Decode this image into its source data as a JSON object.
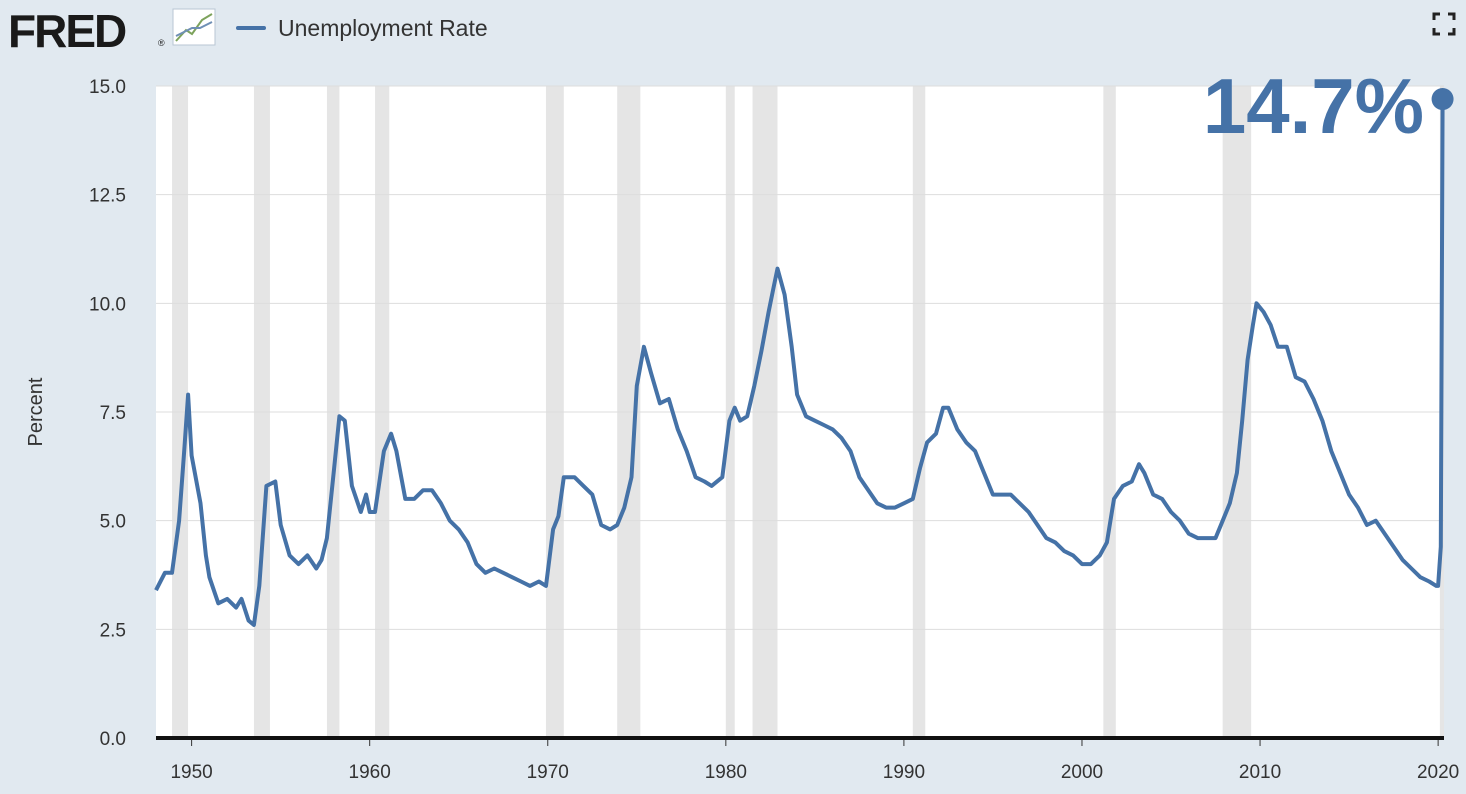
{
  "header": {
    "logo_text": "FRED",
    "logo_mark": "®",
    "logo_icon": "line-graph-icon",
    "fullscreen_icon": "fullscreen-icon"
  },
  "colors": {
    "series": "#4572a7",
    "recession": "#e5e5e5",
    "plot_bg": "#ffffff",
    "page_bg": "#e1e9f0",
    "grid": "#dddddd"
  },
  "chart_data": {
    "type": "line",
    "title": "",
    "xlabel": "",
    "ylabel": "Percent",
    "xlim": [
      1948.0,
      2020.33
    ],
    "ylim": [
      0,
      15
    ],
    "yticks": [
      "0.0",
      "2.5",
      "5.0",
      "7.5",
      "10.0",
      "12.5",
      "15.0"
    ],
    "xticks": [
      "1950",
      "1960",
      "1970",
      "1980",
      "1990",
      "2000",
      "2010",
      "2020"
    ],
    "grid": true,
    "legend": "top-left",
    "annotation": "14.7%",
    "recessions": [
      [
        1948.9,
        1949.8
      ],
      [
        1953.5,
        1954.4
      ],
      [
        1957.6,
        1958.3
      ],
      [
        1960.3,
        1961.1
      ],
      [
        1969.9,
        1970.9
      ],
      [
        1973.9,
        1975.2
      ],
      [
        1980.0,
        1980.5
      ],
      [
        1981.5,
        1982.9
      ],
      [
        1990.5,
        1991.2
      ],
      [
        2001.2,
        2001.9
      ],
      [
        2007.9,
        2009.5
      ],
      [
        2020.1,
        2020.33
      ]
    ],
    "series": [
      {
        "name": "Unemployment Rate",
        "x": [
          1948.0,
          1948.5,
          1948.9,
          1949.3,
          1949.6,
          1949.8,
          1950.0,
          1950.5,
          1950.8,
          1951.0,
          1951.5,
          1952.0,
          1952.5,
          1952.8,
          1953.2,
          1953.5,
          1953.8,
          1954.2,
          1954.7,
          1955.0,
          1955.5,
          1956.0,
          1956.5,
          1957.0,
          1957.3,
          1957.6,
          1958.0,
          1958.3,
          1958.6,
          1959.0,
          1959.5,
          1959.8,
          1960.0,
          1960.3,
          1960.8,
          1961.2,
          1961.5,
          1962.0,
          1962.5,
          1963.0,
          1963.5,
          1964.0,
          1964.5,
          1965.0,
          1965.5,
          1966.0,
          1966.5,
          1967.0,
          1967.5,
          1968.0,
          1968.5,
          1969.0,
          1969.5,
          1969.9,
          1970.3,
          1970.6,
          1970.9,
          1971.5,
          1972.0,
          1972.5,
          1973.0,
          1973.5,
          1973.9,
          1974.3,
          1974.7,
          1975.0,
          1975.4,
          1975.8,
          1976.3,
          1976.8,
          1977.3,
          1977.8,
          1978.3,
          1978.8,
          1979.2,
          1979.8,
          1980.2,
          1980.5,
          1980.8,
          1981.2,
          1981.6,
          1982.0,
          1982.4,
          1982.7,
          1982.9,
          1983.3,
          1983.7,
          1984.0,
          1984.5,
          1985.0,
          1985.5,
          1986.0,
          1986.5,
          1987.0,
          1987.5,
          1988.0,
          1988.5,
          1989.0,
          1989.5,
          1990.0,
          1990.5,
          1990.9,
          1991.3,
          1991.8,
          1992.2,
          1992.5,
          1993.0,
          1993.5,
          1994.0,
          1994.5,
          1995.0,
          1995.5,
          1996.0,
          1996.5,
          1997.0,
          1997.5,
          1998.0,
          1998.5,
          1999.0,
          1999.5,
          2000.0,
          2000.5,
          2001.0,
          2001.4,
          2001.8,
          2002.3,
          2002.8,
          2003.2,
          2003.5,
          2004.0,
          2004.5,
          2005.0,
          2005.5,
          2006.0,
          2006.5,
          2007.0,
          2007.5,
          2007.9,
          2008.3,
          2008.7,
          2009.0,
          2009.3,
          2009.6,
          2009.8,
          2010.2,
          2010.6,
          2011.0,
          2011.5,
          2012.0,
          2012.5,
          2013.0,
          2013.5,
          2014.0,
          2014.5,
          2015.0,
          2015.5,
          2016.0,
          2016.5,
          2017.0,
          2017.5,
          2018.0,
          2018.5,
          2019.0,
          2019.5,
          2019.9,
          2020.0,
          2020.15,
          2020.25
        ],
        "y": [
          3.4,
          3.8,
          3.8,
          5.0,
          6.7,
          7.9,
          6.5,
          5.4,
          4.2,
          3.7,
          3.1,
          3.2,
          3.0,
          3.2,
          2.7,
          2.6,
          3.5,
          5.8,
          5.9,
          4.9,
          4.2,
          4.0,
          4.2,
          3.9,
          4.1,
          4.6,
          6.2,
          7.4,
          7.3,
          5.8,
          5.2,
          5.6,
          5.2,
          5.2,
          6.6,
          7.0,
          6.6,
          5.5,
          5.5,
          5.7,
          5.7,
          5.4,
          5.0,
          4.8,
          4.5,
          4.0,
          3.8,
          3.9,
          3.8,
          3.7,
          3.6,
          3.5,
          3.6,
          3.5,
          4.8,
          5.1,
          6.0,
          6.0,
          5.8,
          5.6,
          4.9,
          4.8,
          4.9,
          5.3,
          6.0,
          8.1,
          9.0,
          8.4,
          7.7,
          7.8,
          7.1,
          6.6,
          6.0,
          5.9,
          5.8,
          6.0,
          7.3,
          7.6,
          7.3,
          7.4,
          8.1,
          8.9,
          9.8,
          10.4,
          10.8,
          10.2,
          9.0,
          7.9,
          7.4,
          7.3,
          7.2,
          7.1,
          6.9,
          6.6,
          6.0,
          5.7,
          5.4,
          5.3,
          5.3,
          5.4,
          5.5,
          6.2,
          6.8,
          7.0,
          7.6,
          7.6,
          7.1,
          6.8,
          6.6,
          6.1,
          5.6,
          5.6,
          5.6,
          5.4,
          5.2,
          4.9,
          4.6,
          4.5,
          4.3,
          4.2,
          4.0,
          4.0,
          4.2,
          4.5,
          5.5,
          5.8,
          5.9,
          6.3,
          6.1,
          5.6,
          5.5,
          5.2,
          5.0,
          4.7,
          4.6,
          4.6,
          4.6,
          5.0,
          5.4,
          6.1,
          7.3,
          8.7,
          9.5,
          10.0,
          9.8,
          9.5,
          9.0,
          9.0,
          8.3,
          8.2,
          7.8,
          7.3,
          6.6,
          6.1,
          5.6,
          5.3,
          4.9,
          5.0,
          4.7,
          4.4,
          4.1,
          3.9,
          3.7,
          3.6,
          3.5,
          3.5,
          4.4,
          14.7
        ]
      }
    ]
  }
}
